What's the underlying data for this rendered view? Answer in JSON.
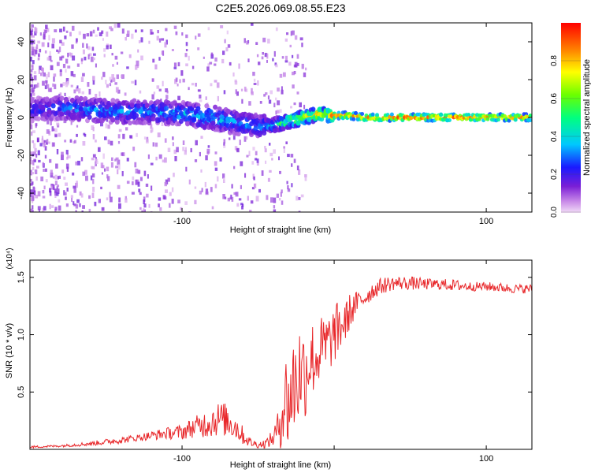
{
  "title": "C2E5.2026.069.08.55.E23",
  "chart_data": [
    {
      "type": "heatmap",
      "title": "C2E5.2026.069.08.55.E23",
      "xlabel": "Height of straight line (km)",
      "ylabel": "Frequency (Hz)",
      "xlim": [
        -200,
        130
      ],
      "ylim": [
        -50,
        50
      ],
      "x_ticks": [
        -100,
        0,
        100
      ],
      "x_tick_labels": [
        "-100",
        "",
        "100"
      ],
      "y_ticks": [
        -40,
        -20,
        0,
        20,
        40
      ],
      "y_tick_labels": [
        "-40",
        "-20",
        "0",
        "20",
        "40"
      ],
      "colorbar": {
        "label": "Normalized spectral amplitude",
        "range": [
          0,
          1
        ],
        "ticks": [
          0.0,
          0.2,
          0.4,
          0.6,
          0.8
        ],
        "tick_labels": [
          "0.0",
          "0.2",
          "0.4",
          "0.6",
          "0.8"
        ]
      },
      "ridge": {
        "x": [
          -200,
          -180,
          -160,
          -140,
          -120,
          -100,
          -80,
          -70,
          -60,
          -50,
          -40,
          -35,
          -30,
          -20,
          -10,
          0,
          10,
          20,
          40,
          60,
          80,
          100,
          130
        ],
        "y": [
          4,
          5,
          4,
          3,
          3,
          2,
          0,
          -2,
          -3,
          -5,
          -4,
          -3,
          -2,
          0,
          2,
          1,
          1,
          0,
          0,
          0,
          0,
          0,
          0
        ],
        "amplitude": [
          0.25,
          0.3,
          0.35,
          0.35,
          0.35,
          0.4,
          0.4,
          0.4,
          0.35,
          0.35,
          0.45,
          0.6,
          0.7,
          0.8,
          0.85,
          0.85,
          0.9,
          0.9,
          0.95,
          0.95,
          0.95,
          0.9,
          0.85
        ]
      }
    },
    {
      "type": "line",
      "xlabel": "Height of straight line (km)",
      "ylabel": "SNR (10 * v/v)",
      "scale_label": "(x10⁴)",
      "xlim": [
        -200,
        130
      ],
      "ylim": [
        0,
        1.65
      ],
      "x_ticks": [
        -100,
        0,
        100
      ],
      "x_tick_labels": [
        "-100",
        "",
        "100"
      ],
      "y_ticks": [
        0.5,
        1.0,
        1.5
      ],
      "y_tick_labels": [
        "0.5",
        "1.0",
        "1.5"
      ],
      "series": [
        {
          "name": "SNR",
          "color": "#e8282b",
          "x": [
            -200,
            -180,
            -160,
            -140,
            -130,
            -120,
            -110,
            -100,
            -95,
            -90,
            -85,
            -80,
            -75,
            -70,
            -65,
            -60,
            -55,
            -50,
            -45,
            -40,
            -37,
            -35,
            -32,
            -30,
            -27,
            -25,
            -22,
            -20,
            -17,
            -15,
            -12,
            -10,
            -7,
            -5,
            -2,
            0,
            3,
            5,
            8,
            10,
            12,
            15,
            20,
            25,
            30,
            35,
            40,
            50,
            60,
            70,
            80,
            90,
            100,
            110,
            120,
            130
          ],
          "values": [
            0.02,
            0.03,
            0.05,
            0.08,
            0.1,
            0.12,
            0.14,
            0.15,
            0.18,
            0.2,
            0.22,
            0.25,
            0.27,
            0.25,
            0.2,
            0.12,
            0.06,
            0.04,
            0.05,
            0.1,
            0.18,
            0.3,
            0.45,
            0.4,
            0.55,
            0.6,
            0.7,
            0.65,
            0.75,
            0.8,
            0.78,
            0.85,
            0.88,
            0.9,
            0.95,
            1.0,
            1.05,
            1.08,
            1.12,
            1.2,
            1.22,
            1.28,
            1.32,
            1.38,
            1.42,
            1.44,
            1.45,
            1.45,
            1.44,
            1.44,
            1.43,
            1.42,
            1.42,
            1.41,
            1.4,
            1.4
          ],
          "noise": [
            0.01,
            0.01,
            0.02,
            0.03,
            0.03,
            0.04,
            0.05,
            0.07,
            0.08,
            0.1,
            0.12,
            0.15,
            0.15,
            0.15,
            0.12,
            0.08,
            0.04,
            0.03,
            0.04,
            0.08,
            0.15,
            0.3,
            0.4,
            0.45,
            0.45,
            0.5,
            0.45,
            0.45,
            0.35,
            0.35,
            0.3,
            0.3,
            0.3,
            0.3,
            0.25,
            0.25,
            0.25,
            0.2,
            0.18,
            0.16,
            0.14,
            0.1,
            0.08,
            0.08,
            0.07,
            0.07,
            0.06,
            0.06,
            0.05,
            0.05,
            0.05,
            0.04,
            0.04,
            0.04,
            0.04,
            0.04
          ]
        }
      ]
    }
  ]
}
